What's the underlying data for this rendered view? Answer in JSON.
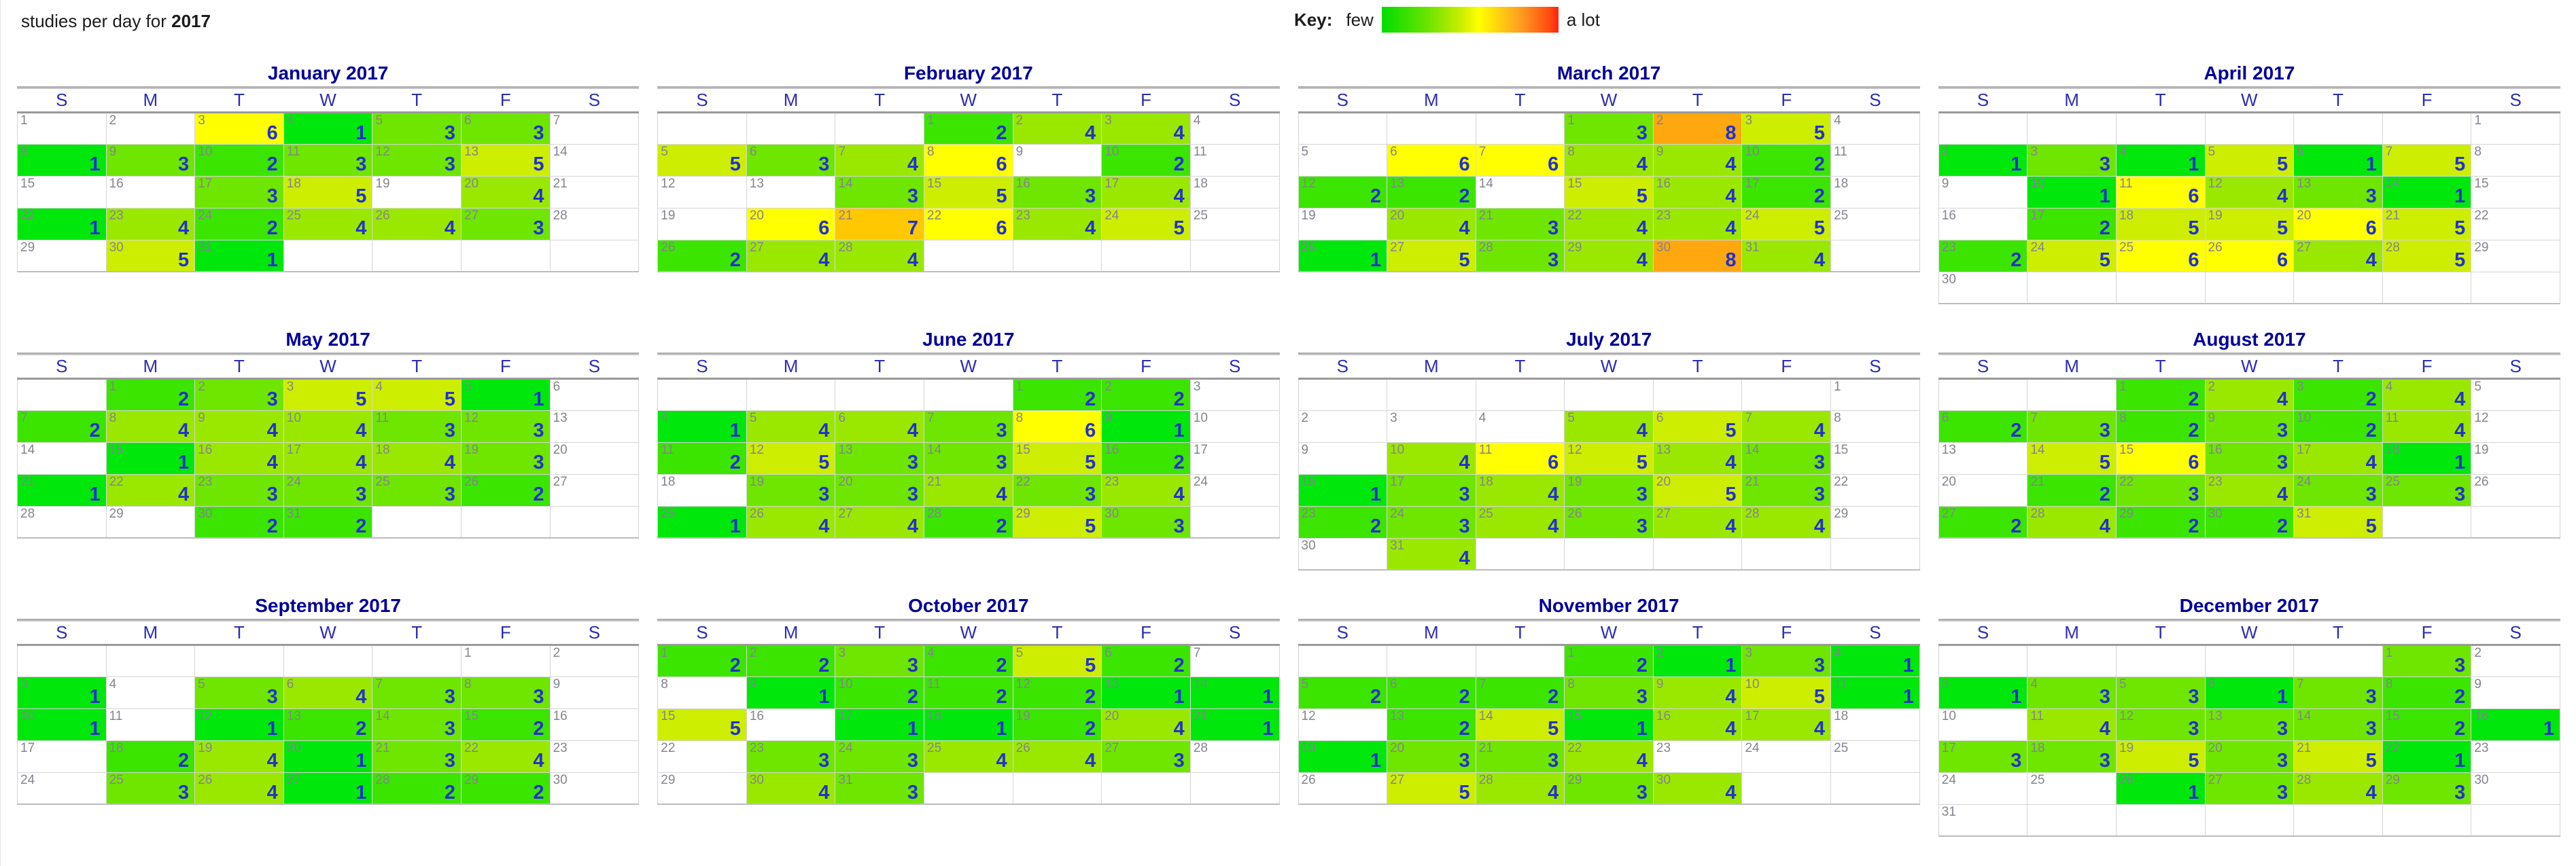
{
  "header": {
    "title_prefix": "studies per day for ",
    "year": "2017"
  },
  "key": {
    "label": "Key:",
    "few": "few",
    "a_lot": "a lot",
    "gradient_stops": [
      "#00dd00 0%",
      "#66e300 25%",
      "#ccee00 45%",
      "#ffff00 55%",
      "#ffa020 78%",
      "#ff4a10 95%",
      "#ff2212 100%"
    ]
  },
  "day_headers": [
    "S",
    "M",
    "T",
    "W",
    "T",
    "F",
    "S"
  ],
  "palette": {
    "1": "#00e70c",
    "2": "#3ce500",
    "3": "#6ee600",
    "4": "#9ae800",
    "5": "#cdee00",
    "6": "#ffff00",
    "7": "#ffc800",
    "8": "#ffa70f"
  },
  "chart_data": {
    "type": "heatmap",
    "title": "studies per day for 2017",
    "legend": {
      "label": "Key:",
      "min_label": "few",
      "max_label": "a lot"
    },
    "value_range": [
      1,
      8
    ],
    "months": [
      {
        "name": "January 2017",
        "first_dow": 0,
        "num_days": 31,
        "counts": {
          "3": 6,
          "4": 1,
          "5": 3,
          "6": 3,
          "8": 1,
          "9": 3,
          "10": 2,
          "11": 3,
          "12": 3,
          "13": 5,
          "17": 3,
          "18": 5,
          "20": 4,
          "22": 1,
          "23": 4,
          "24": 2,
          "25": 4,
          "26": 4,
          "27": 3,
          "30": 5,
          "31": 1
        }
      },
      {
        "name": "February 2017",
        "first_dow": 3,
        "num_days": 28,
        "counts": {
          "1": 2,
          "2": 4,
          "3": 4,
          "5": 5,
          "6": 3,
          "7": 4,
          "8": 6,
          "10": 2,
          "14": 3,
          "15": 5,
          "16": 3,
          "17": 4,
          "20": 6,
          "21": 7,
          "22": 6,
          "23": 4,
          "24": 5,
          "26": 2,
          "27": 4,
          "28": 4
        }
      },
      {
        "name": "March 2017",
        "first_dow": 3,
        "num_days": 31,
        "counts": {
          "1": 3,
          "2": 8,
          "3": 5,
          "6": 6,
          "7": 6,
          "8": 4,
          "9": 4,
          "10": 2,
          "12": 2,
          "13": 2,
          "15": 5,
          "16": 4,
          "17": 2,
          "20": 4,
          "21": 3,
          "22": 4,
          "23": 4,
          "24": 5,
          "26": 1,
          "27": 5,
          "28": 3,
          "29": 4,
          "30": 8,
          "31": 4
        }
      },
      {
        "name": "April 2017",
        "first_dow": 6,
        "num_days": 30,
        "counts": {
          "2": 1,
          "3": 3,
          "4": 1,
          "5": 5,
          "6": 1,
          "7": 5,
          "10": 1,
          "11": 6,
          "12": 4,
          "13": 3,
          "14": 1,
          "17": 2,
          "18": 5,
          "19": 5,
          "20": 6,
          "21": 5,
          "23": 2,
          "24": 5,
          "25": 6,
          "26": 6,
          "27": 4,
          "28": 5
        }
      },
      {
        "name": "May 2017",
        "first_dow": 1,
        "num_days": 31,
        "counts": {
          "1": 2,
          "2": 3,
          "3": 5,
          "4": 5,
          "5": 1,
          "7": 2,
          "8": 4,
          "9": 4,
          "10": 4,
          "11": 3,
          "12": 3,
          "15": 1,
          "16": 4,
          "17": 4,
          "18": 4,
          "19": 3,
          "21": 1,
          "22": 4,
          "23": 3,
          "24": 3,
          "25": 3,
          "26": 2,
          "30": 2,
          "31": 2
        }
      },
      {
        "name": "June 2017",
        "first_dow": 4,
        "num_days": 30,
        "counts": {
          "1": 2,
          "2": 2,
          "4": 1,
          "5": 4,
          "6": 4,
          "7": 3,
          "8": 6,
          "9": 1,
          "11": 2,
          "12": 5,
          "13": 3,
          "14": 3,
          "15": 5,
          "16": 2,
          "19": 3,
          "20": 3,
          "21": 4,
          "22": 3,
          "23": 4,
          "25": 1,
          "26": 4,
          "27": 4,
          "28": 2,
          "29": 5,
          "30": 3
        }
      },
      {
        "name": "July 2017",
        "first_dow": 6,
        "num_days": 31,
        "counts": {
          "5": 4,
          "6": 5,
          "7": 4,
          "10": 4,
          "11": 6,
          "12": 5,
          "13": 4,
          "14": 3,
          "16": 1,
          "17": 3,
          "18": 4,
          "19": 3,
          "20": 5,
          "21": 3,
          "23": 2,
          "24": 3,
          "25": 4,
          "26": 3,
          "27": 4,
          "28": 4,
          "31": 4
        }
      },
      {
        "name": "August 2017",
        "first_dow": 2,
        "num_days": 31,
        "counts": {
          "1": 2,
          "2": 4,
          "3": 2,
          "4": 4,
          "6": 2,
          "7": 3,
          "8": 2,
          "9": 3,
          "10": 2,
          "11": 4,
          "14": 5,
          "15": 6,
          "16": 3,
          "17": 4,
          "18": 1,
          "21": 2,
          "22": 3,
          "23": 4,
          "24": 3,
          "25": 3,
          "27": 2,
          "28": 4,
          "29": 2,
          "30": 2,
          "31": 5
        }
      },
      {
        "name": "September 2017",
        "first_dow": 5,
        "num_days": 30,
        "counts": {
          "3": 1,
          "5": 3,
          "6": 4,
          "7": 3,
          "8": 3,
          "10": 1,
          "12": 1,
          "13": 2,
          "14": 3,
          "15": 2,
          "18": 2,
          "19": 4,
          "20": 1,
          "21": 3,
          "22": 4,
          "25": 3,
          "26": 4,
          "27": 1,
          "28": 2,
          "29": 2
        }
      },
      {
        "name": "October 2017",
        "first_dow": 0,
        "num_days": 31,
        "counts": {
          "1": 2,
          "2": 2,
          "3": 3,
          "4": 2,
          "5": 5,
          "6": 2,
          "9": 1,
          "10": 2,
          "11": 2,
          "12": 2,
          "13": 1,
          "14": 1,
          "15": 5,
          "17": 1,
          "18": 1,
          "19": 2,
          "20": 4,
          "21": 1,
          "23": 3,
          "24": 3,
          "25": 4,
          "26": 4,
          "27": 3,
          "30": 4,
          "31": 3
        }
      },
      {
        "name": "November 2017",
        "first_dow": 3,
        "num_days": 30,
        "counts": {
          "1": 2,
          "2": 1,
          "3": 3,
          "4": 1,
          "5": 2,
          "6": 2,
          "7": 2,
          "8": 3,
          "9": 4,
          "10": 5,
          "11": 1,
          "13": 2,
          "14": 5,
          "15": 1,
          "16": 4,
          "17": 4,
          "19": 1,
          "20": 3,
          "21": 3,
          "22": 4,
          "27": 5,
          "28": 4,
          "29": 3,
          "30": 4
        }
      },
      {
        "name": "December 2017",
        "first_dow": 5,
        "num_days": 31,
        "counts": {
          "1": 3,
          "3": 1,
          "4": 3,
          "5": 3,
          "6": 1,
          "7": 3,
          "8": 2,
          "11": 4,
          "12": 3,
          "13": 3,
          "14": 3,
          "15": 2,
          "16": 1,
          "17": 3,
          "18": 3,
          "19": 5,
          "20": 3,
          "21": 5,
          "22": 1,
          "26": 1,
          "27": 3,
          "28": 4,
          "29": 3
        }
      }
    ]
  }
}
